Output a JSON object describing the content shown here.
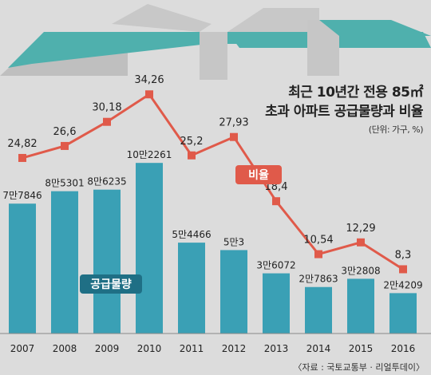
{
  "chart_data": {
    "type": "bar+line",
    "title": [
      "최근 10년간 전용 85㎡",
      "초과 아파트 공급물량과 비율"
    ],
    "unit": "(단위: 가구, %)",
    "categories": [
      "2007",
      "2008",
      "2009",
      "2010",
      "2011",
      "2012",
      "2013",
      "2014",
      "2015",
      "2016"
    ],
    "bar_series": {
      "name": "공급물량",
      "values": [
        77846,
        85301,
        86235,
        102261,
        54466,
        50003,
        36072,
        27863,
        32808,
        24209
      ],
      "labels": [
        "7만7846",
        "8만5301",
        "8만6235",
        "10만2261",
        "5만4466",
        "5만3",
        "3만6072",
        "2만7863",
        "3만2808",
        "2만4209"
      ],
      "color": "#3aa0b5"
    },
    "line_series": {
      "name": "비율",
      "values": [
        24.82,
        26.6,
        30.18,
        34.26,
        25.2,
        27.93,
        18.4,
        10.54,
        12.29,
        8.3
      ],
      "labels": [
        "24,82",
        "26,6",
        "30,18",
        "34,26",
        "25,2",
        "27,93",
        "18,4",
        "10,54",
        "12,29",
        "8,3"
      ],
      "color": "#e05a4a"
    }
  },
  "source": "〈자료 : 국토교통부 · 리얼투데이〉"
}
